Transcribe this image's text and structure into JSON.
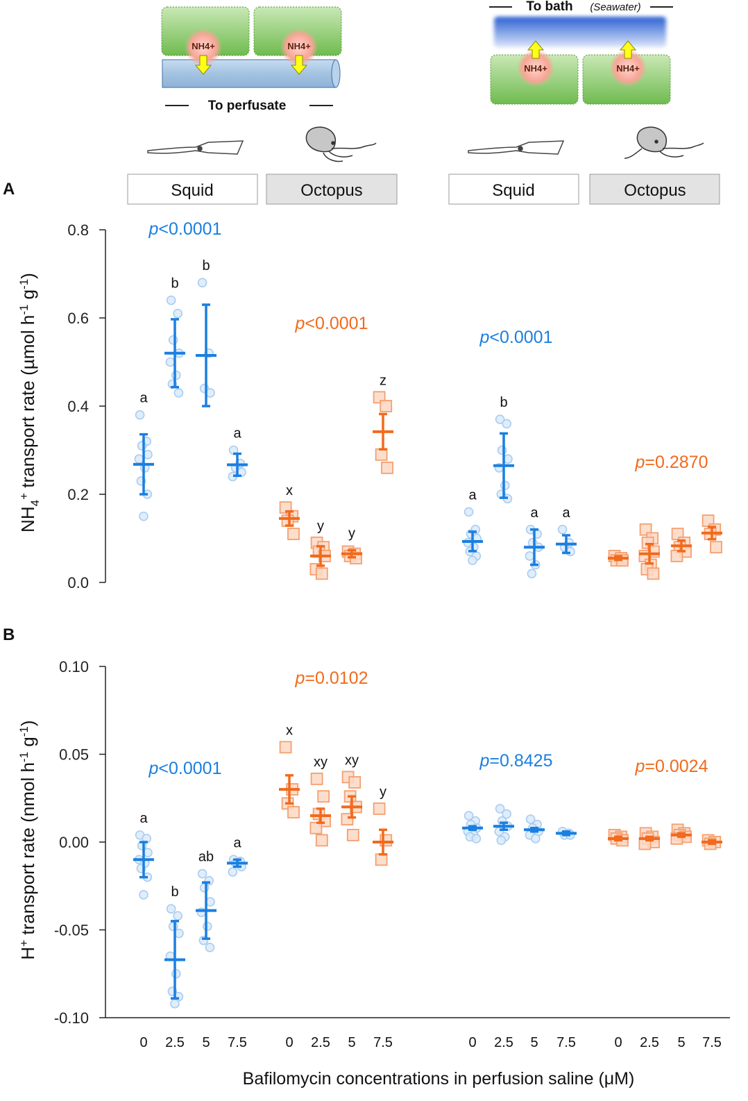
{
  "figure": {
    "panel_a_label": "A",
    "panel_b_label": "B",
    "shared_xlabel": "Bafilomycin concentrations in perfusion saline (μM)",
    "xtick_labels": [
      "0",
      "2.5",
      "5",
      "7.5"
    ],
    "diagram": {
      "ion_label": "NH4+",
      "perfusate_label": "To perfusate",
      "bath_label": "To bath",
      "bath_note": "(Seawater)",
      "group_labels": [
        "Squid",
        "Octopus",
        "Squid",
        "Octopus"
      ]
    },
    "colors": {
      "squid": "#1a7fe0",
      "squid_marker": "#a9cdf0",
      "octopus": "#f26a1d",
      "octopus_marker": "#f59f6f",
      "axis": "#222222",
      "tissue_green": "#7cc35e",
      "tube_blue": "#a9c7e4"
    }
  },
  "chart_data": [
    {
      "type": "scatter",
      "panel": "A",
      "ylabel_html": "NH4+ transport rate (µmol h-1 g-1)",
      "ylim": [
        0.0,
        0.8
      ],
      "yticks": [
        "0.0",
        "0.2",
        "0.4",
        "0.6",
        "0.8"
      ],
      "groups": [
        {
          "name": "Squid (perfusate)",
          "species": "squid",
          "pvalue": "p<0.0001",
          "points": [
            {
              "x": "0",
              "mean": 0.268,
              "sd": 0.068,
              "letter": "a",
              "values": [
                0.38,
                0.32,
                0.31,
                0.29,
                0.28,
                0.26,
                0.23,
                0.2,
                0.15
              ]
            },
            {
              "x": "2.5",
              "mean": 0.52,
              "sd": 0.077,
              "letter": "b",
              "values": [
                0.64,
                0.61,
                0.55,
                0.52,
                0.5,
                0.47,
                0.45,
                0.43
              ]
            },
            {
              "x": "5",
              "mean": 0.515,
              "sd": 0.115,
              "letter": "b",
              "values": [
                0.68,
                0.52,
                0.44,
                0.43
              ]
            },
            {
              "x": "7.5",
              "mean": 0.267,
              "sd": 0.025,
              "letter": "a",
              "values": [
                0.3,
                0.27,
                0.26,
                0.25,
                0.24
              ]
            }
          ]
        },
        {
          "name": "Octopus (perfusate)",
          "species": "octopus",
          "pvalue": "p<0.0001",
          "points": [
            {
              "x": "0",
              "mean": 0.145,
              "sd": 0.016,
              "letter": "x",
              "values": [
                0.17,
                0.15,
                0.14,
                0.11
              ]
            },
            {
              "x": "2.5",
              "mean": 0.06,
              "sd": 0.022,
              "letter": "y",
              "values": [
                0.09,
                0.08,
                0.07,
                0.06,
                0.03,
                0.02
              ]
            },
            {
              "x": "5",
              "mean": 0.065,
              "sd": 0.008,
              "letter": "y",
              "values": [
                0.07,
                0.065,
                0.06,
                0.055
              ]
            },
            {
              "x": "7.5",
              "mean": 0.342,
              "sd": 0.04,
              "letter": "z",
              "values": [
                0.42,
                0.4,
                0.29,
                0.26
              ]
            }
          ]
        },
        {
          "name": "Squid (bath)",
          "species": "squid",
          "pvalue": "p<0.0001",
          "points": [
            {
              "x": "0",
              "mean": 0.093,
              "sd": 0.022,
              "letter": "a",
              "values": [
                0.16,
                0.12,
                0.11,
                0.1,
                0.09,
                0.08,
                0.07,
                0.06,
                0.05
              ]
            },
            {
              "x": "2.5",
              "mean": 0.265,
              "sd": 0.073,
              "letter": "b",
              "values": [
                0.37,
                0.36,
                0.3,
                0.28,
                0.26,
                0.22,
                0.2,
                0.19
              ]
            },
            {
              "x": "5",
              "mean": 0.08,
              "sd": 0.04,
              "letter": "a",
              "values": [
                0.12,
                0.11,
                0.09,
                0.08,
                0.06,
                0.04,
                0.02
              ]
            },
            {
              "x": "7.5",
              "mean": 0.087,
              "sd": 0.02,
              "letter": "a",
              "values": [
                0.12,
                0.09,
                0.08,
                0.07
              ]
            }
          ]
        },
        {
          "name": "Octopus (bath)",
          "species": "octopus",
          "pvalue": "p=0.2870",
          "points": [
            {
              "x": "0",
              "mean": 0.055,
              "sd": 0.004,
              "letter": "",
              "values": [
                0.06,
                0.055,
                0.05,
                0.05
              ]
            },
            {
              "x": "2.5",
              "mean": 0.065,
              "sd": 0.022,
              "letter": "",
              "values": [
                0.12,
                0.1,
                0.09,
                0.07,
                0.06,
                0.04,
                0.03,
                0.02
              ]
            },
            {
              "x": "5",
              "mean": 0.083,
              "sd": 0.012,
              "letter": "",
              "values": [
                0.11,
                0.09,
                0.08,
                0.07,
                0.06
              ]
            },
            {
              "x": "7.5",
              "mean": 0.112,
              "sd": 0.014,
              "letter": "",
              "values": [
                0.14,
                0.12,
                0.11,
                0.08
              ]
            }
          ]
        }
      ]
    },
    {
      "type": "scatter",
      "panel": "B",
      "ylabel_html": "H+ transport rate (nmol h-1 g-1)",
      "ylim": [
        -0.1,
        0.1
      ],
      "yticks": [
        "-0.10",
        "-0.05",
        "0.00",
        "0.05",
        "0.10"
      ],
      "groups": [
        {
          "name": "Squid (perfusate)",
          "species": "squid",
          "pvalue": "p<0.0001",
          "points": [
            {
              "x": "0",
              "mean": -0.01,
              "sd": 0.01,
              "letter": "a",
              "values": [
                0.004,
                0.002,
                -0.002,
                -0.006,
                -0.01,
                -0.012,
                -0.015,
                -0.02,
                -0.03
              ]
            },
            {
              "x": "2.5",
              "mean": -0.067,
              "sd": 0.022,
              "letter": "b",
              "values": [
                -0.038,
                -0.042,
                -0.048,
                -0.052,
                -0.065,
                -0.075,
                -0.085,
                -0.088,
                -0.092
              ]
            },
            {
              "x": "5",
              "mean": -0.039,
              "sd": 0.016,
              "letter": "ab",
              "values": [
                -0.018,
                -0.022,
                -0.026,
                -0.034,
                -0.04,
                -0.048,
                -0.056,
                -0.06
              ]
            },
            {
              "x": "7.5",
              "mean": -0.012,
              "sd": 0.002,
              "letter": "a",
              "values": [
                -0.01,
                -0.011,
                -0.012,
                -0.014,
                -0.017
              ]
            }
          ]
        },
        {
          "name": "Octopus (perfusate)",
          "species": "octopus",
          "pvalue": "p=0.0102",
          "points": [
            {
              "x": "0",
              "mean": 0.03,
              "sd": 0.008,
              "letter": "x",
              "values": [
                0.054,
                0.03,
                0.022,
                0.017
              ]
            },
            {
              "x": "2.5",
              "mean": 0.015,
              "sd": 0.004,
              "letter": "xy",
              "values": [
                0.036,
                0.026,
                0.016,
                0.012,
                0.008,
                0.001
              ]
            },
            {
              "x": "5",
              "mean": 0.02,
              "sd": 0.006,
              "letter": "xy",
              "values": [
                0.037,
                0.034,
                0.026,
                0.02,
                0.013,
                0.004
              ]
            },
            {
              "x": "7.5",
              "mean": 0.0,
              "sd": 0.007,
              "letter": "y",
              "values": [
                0.019,
                0.001,
                -0.01
              ]
            }
          ]
        },
        {
          "name": "Squid (bath)",
          "species": "squid",
          "pvalue": "p=0.8425",
          "points": [
            {
              "x": "0",
              "mean": 0.008,
              "sd": 0.001,
              "letter": "",
              "values": [
                0.015,
                0.012,
                0.01,
                0.008,
                0.006,
                0.004,
                0.003,
                0.002
              ]
            },
            {
              "x": "2.5",
              "mean": 0.009,
              "sd": 0.002,
              "letter": "",
              "values": [
                0.019,
                0.016,
                0.012,
                0.009,
                0.006,
                0.003,
                0.001
              ]
            },
            {
              "x": "5",
              "mean": 0.007,
              "sd": 0.001,
              "letter": "",
              "values": [
                0.013,
                0.01,
                0.008,
                0.006,
                0.004,
                0.002
              ]
            },
            {
              "x": "7.5",
              "mean": 0.005,
              "sd": 0.001,
              "letter": "",
              "values": [
                0.006,
                0.005,
                0.004,
                0.004
              ]
            }
          ]
        },
        {
          "name": "Octopus (bath)",
          "species": "octopus",
          "pvalue": "p=0.0024",
          "points": [
            {
              "x": "0",
              "mean": 0.002,
              "sd": 0.001,
              "letter": "",
              "values": [
                0.004,
                0.003,
                0.002,
                0.001
              ]
            },
            {
              "x": "2.5",
              "mean": 0.002,
              "sd": 0.001,
              "letter": "",
              "values": [
                0.005,
                0.003,
                0.002,
                0.0,
                -0.001
              ]
            },
            {
              "x": "5",
              "mean": 0.004,
              "sd": 0.001,
              "letter": "",
              "values": [
                0.007,
                0.005,
                0.004,
                0.003,
                0.002
              ]
            },
            {
              "x": "7.5",
              "mean": 0.0,
              "sd": 0.001,
              "letter": "",
              "values": [
                0.001,
                0.0,
                -0.001
              ]
            }
          ]
        }
      ]
    }
  ]
}
